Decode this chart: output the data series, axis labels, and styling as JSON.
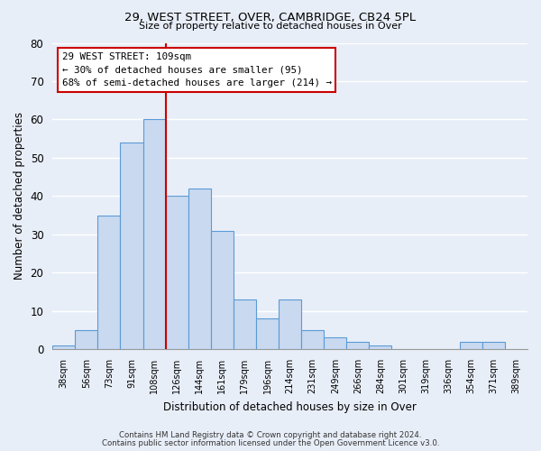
{
  "title": "29, WEST STREET, OVER, CAMBRIDGE, CB24 5PL",
  "subtitle": "Size of property relative to detached houses in Over",
  "xlabel": "Distribution of detached houses by size in Over",
  "ylabel": "Number of detached properties",
  "categories": [
    "38sqm",
    "56sqm",
    "73sqm",
    "91sqm",
    "108sqm",
    "126sqm",
    "144sqm",
    "161sqm",
    "179sqm",
    "196sqm",
    "214sqm",
    "231sqm",
    "249sqm",
    "266sqm",
    "284sqm",
    "301sqm",
    "319sqm",
    "336sqm",
    "354sqm",
    "371sqm",
    "389sqm"
  ],
  "values": [
    1,
    5,
    35,
    54,
    60,
    40,
    42,
    31,
    13,
    8,
    13,
    5,
    3,
    2,
    1,
    0,
    0,
    0,
    2,
    2,
    0
  ],
  "bar_color": "#c8d9f0",
  "bar_edge_color": "#5b9bd5",
  "background_color": "#e8eef8",
  "grid_color": "#ffffff",
  "annotation_line1": "29 WEST STREET: 109sqm",
  "annotation_line2": "← 30% of detached houses are smaller (95)",
  "annotation_line3": "68% of semi-detached houses are larger (214) →",
  "annotation_box_edge_color": "#cc0000",
  "annotation_box_fill_color": "#ffffff",
  "marker_line_color": "#cc0000",
  "ylim": [
    0,
    80
  ],
  "footnote1": "Contains HM Land Registry data © Crown copyright and database right 2024.",
  "footnote2": "Contains public sector information licensed under the Open Government Licence v3.0."
}
